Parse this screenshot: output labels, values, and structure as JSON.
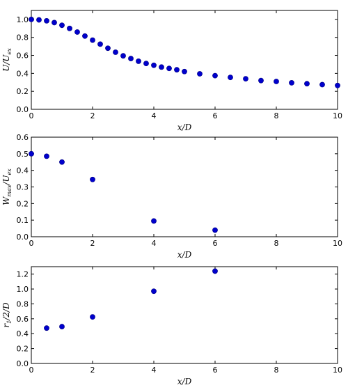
{
  "colors": {
    "marker": "#0000cc",
    "marker_edge": "#000080",
    "axis": "#000000",
    "background": "#ffffff"
  },
  "chart_data": [
    {
      "type": "scatter",
      "xlabel": "x/D",
      "ylabel": "U/U_ex",
      "xlim": [
        0,
        10
      ],
      "ylim": [
        0,
        1.1
      ],
      "xticks": [
        "0",
        "2",
        "4",
        "6",
        "8",
        "10"
      ],
      "yticks": [
        "0.0",
        "0.2",
        "0.4",
        "0.6",
        "0.8",
        "1.0"
      ],
      "series": [
        {
          "x": [
            0,
            0.25,
            0.5,
            0.75,
            1.0,
            1.25,
            1.5,
            1.75,
            2.0,
            2.25,
            2.5,
            2.75,
            3.0,
            3.25,
            3.5,
            3.75,
            4.0,
            4.25,
            4.5,
            4.75,
            5.0,
            5.5,
            6.0,
            6.5,
            7.0,
            7.5,
            8.0,
            8.5,
            9.0,
            9.5,
            10.0
          ],
          "y": [
            1.0,
            0.995,
            0.985,
            0.965,
            0.935,
            0.9,
            0.86,
            0.815,
            0.77,
            0.725,
            0.68,
            0.635,
            0.595,
            0.565,
            0.535,
            0.51,
            0.49,
            0.47,
            0.455,
            0.44,
            0.42,
            0.395,
            0.375,
            0.355,
            0.34,
            0.32,
            0.31,
            0.295,
            0.285,
            0.275,
            0.265
          ]
        }
      ]
    },
    {
      "type": "scatter",
      "xlabel": "x/D",
      "ylabel": "W_max/U_ex",
      "xlim": [
        0,
        10
      ],
      "ylim": [
        0,
        0.6
      ],
      "xticks": [
        "0",
        "2",
        "4",
        "6",
        "8",
        "10"
      ],
      "yticks": [
        "0.0",
        "0.1",
        "0.2",
        "0.3",
        "0.4",
        "0.5",
        "0.6"
      ],
      "series": [
        {
          "x": [
            0,
            0.5,
            1.0,
            2.0,
            4.0,
            6.0
          ],
          "y": [
            0.5,
            0.485,
            0.45,
            0.345,
            0.095,
            0.04
          ]
        }
      ]
    },
    {
      "type": "scatter",
      "xlabel": "x/D",
      "ylabel": "r_1/2/D",
      "xlim": [
        0,
        10
      ],
      "ylim": [
        0,
        1.3
      ],
      "xticks": [
        "0",
        "2",
        "4",
        "6",
        "8",
        "10"
      ],
      "yticks": [
        "0.0",
        "0.2",
        "0.4",
        "0.6",
        "0.8",
        "1.0",
        "1.2"
      ],
      "series": [
        {
          "x": [
            0.5,
            1.0,
            2.0,
            4.0,
            6.0
          ],
          "y": [
            0.475,
            0.495,
            0.625,
            0.97,
            1.24
          ]
        }
      ]
    }
  ]
}
